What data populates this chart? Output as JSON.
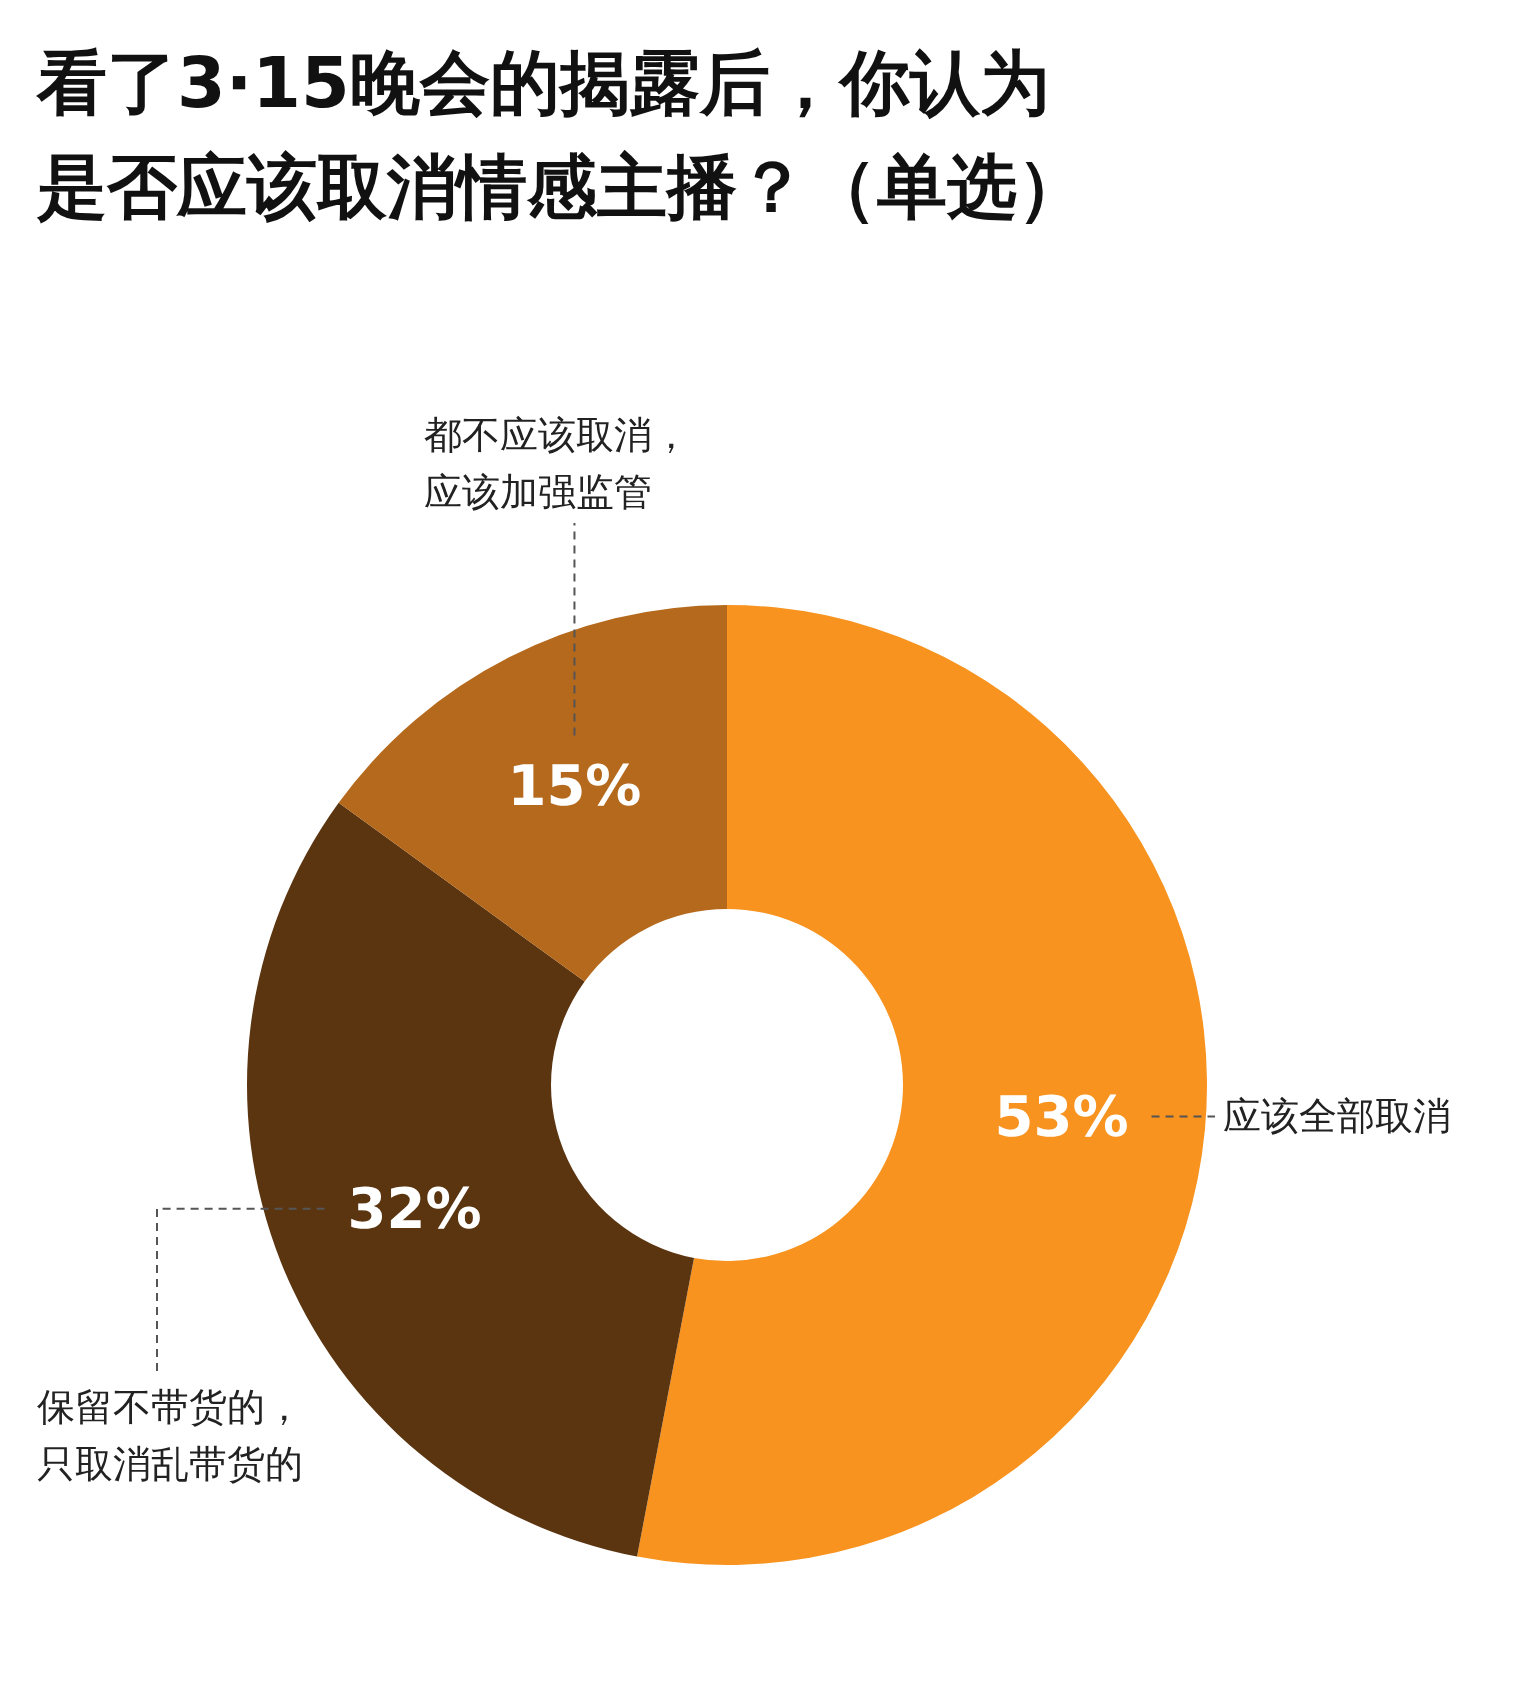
{
  "chart_data": {
    "type": "donut",
    "title": "看了3·15晚会的揭露后，你认为是否应该取消情感主播？（单选）",
    "categories": [
      "应该全部取消",
      "保留不带货的，只取消乱带货的",
      "都不应该取消，应该加强监管"
    ],
    "values": [
      53,
      32,
      15
    ],
    "colors": [
      "#f7931e",
      "#5b3410",
      "#b5691c"
    ],
    "value_labels": [
      "53%",
      "32%",
      "15%"
    ]
  }
}
